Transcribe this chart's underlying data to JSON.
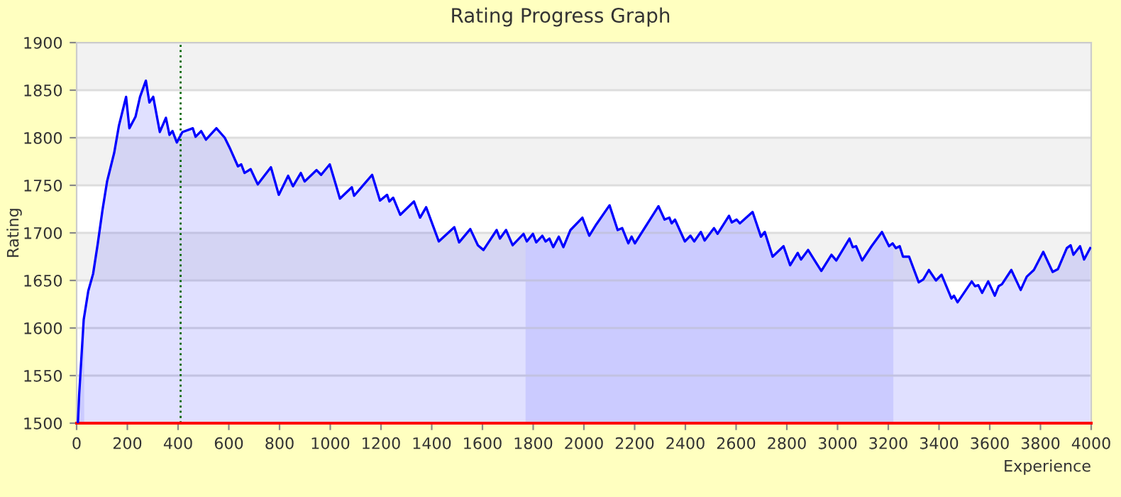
{
  "chart_data": {
    "type": "area",
    "title": "Rating Progress Graph",
    "xlabel": "Experience",
    "ylabel": "Rating",
    "x": [
      5,
      10,
      28,
      46,
      65,
      83,
      102,
      120,
      148,
      167,
      195,
      208,
      232,
      250,
      273,
      287,
      302,
      328,
      352,
      366,
      378,
      395,
      417,
      458,
      469,
      491,
      510,
      551,
      584,
      606,
      636,
      649,
      662,
      686,
      714,
      766,
      797,
      834,
      853,
      884,
      899,
      946,
      964,
      998,
      1025,
      1038,
      1085,
      1094,
      1165,
      1196,
      1224,
      1233,
      1248,
      1276,
      1330,
      1354,
      1378,
      1428,
      1489,
      1508,
      1552,
      1582,
      1604,
      1656,
      1669,
      1693,
      1719,
      1762,
      1775,
      1799,
      1812,
      1836,
      1849,
      1864,
      1879,
      1901,
      1919,
      1947,
      1994,
      2021,
      2049,
      2101,
      2133,
      2151,
      2175,
      2188,
      2201,
      2294,
      2318,
      2337,
      2346,
      2359,
      2398,
      2420,
      2435,
      2461,
      2476,
      2513,
      2527,
      2572,
      2583,
      2602,
      2615,
      2665,
      2698,
      2713,
      2744,
      2787,
      2813,
      2843,
      2856,
      2884,
      2912,
      2936,
      2976,
      2995,
      3047,
      3060,
      3073,
      3097,
      3134,
      3175,
      3203,
      3217,
      3230,
      3245,
      3258,
      3282,
      3320,
      3338,
      3360,
      3388,
      3410,
      3449,
      3459,
      3473,
      3529,
      3542,
      3555,
      3570,
      3594,
      3620,
      3635,
      3648,
      3685,
      3722,
      3746,
      3774,
      3811,
      3848,
      3869,
      3904,
      3919,
      3930,
      3956,
      3972,
      3996
    ],
    "series": [
      {
        "color": "#0000ff",
        "values": [
          1500,
          1530,
          1609,
          1639,
          1657,
          1688,
          1724,
          1754,
          1784,
          1813,
          1843,
          1810,
          1822,
          1843,
          1860,
          1837,
          1843,
          1806,
          1821,
          1803,
          1807,
          1795,
          1806,
          1810,
          1801,
          1807,
          1798,
          1810,
          1800,
          1788,
          1770,
          1772,
          1763,
          1767,
          1751,
          1769,
          1740,
          1760,
          1749,
          1763,
          1754,
          1766,
          1761,
          1772,
          1748,
          1736,
          1748,
          1739,
          1761,
          1734,
          1740,
          1733,
          1737,
          1719,
          1733,
          1716,
          1727,
          1691,
          1706,
          1690,
          1704,
          1687,
          1682,
          1703,
          1694,
          1703,
          1687,
          1699,
          1691,
          1699,
          1690,
          1697,
          1691,
          1694,
          1685,
          1696,
          1685,
          1703,
          1716,
          1697,
          1709,
          1729,
          1703,
          1705,
          1689,
          1696,
          1689,
          1728,
          1714,
          1716,
          1710,
          1714,
          1691,
          1697,
          1691,
          1701,
          1692,
          1705,
          1699,
          1718,
          1711,
          1714,
          1710,
          1722,
          1696,
          1701,
          1675,
          1686,
          1666,
          1679,
          1672,
          1682,
          1670,
          1660,
          1677,
          1671,
          1694,
          1685,
          1686,
          1671,
          1686,
          1701,
          1686,
          1689,
          1684,
          1686,
          1675,
          1675,
          1648,
          1651,
          1661,
          1650,
          1656,
          1631,
          1634,
          1627,
          1649,
          1644,
          1645,
          1637,
          1649,
          1634,
          1644,
          1646,
          1661,
          1640,
          1654,
          1661,
          1680,
          1659,
          1662,
          1684,
          1687,
          1677,
          1686,
          1672,
          1684
        ]
      }
    ],
    "xlim": [
      0,
      4000
    ],
    "ylim": [
      1500,
      1900
    ],
    "xticks": [
      0,
      200,
      400,
      600,
      800,
      1000,
      1200,
      1400,
      1600,
      1800,
      2000,
      2200,
      2400,
      2600,
      2800,
      3000,
      3200,
      3400,
      3600,
      3800,
      4000
    ],
    "yticks": [
      1500,
      1550,
      1600,
      1650,
      1700,
      1750,
      1800,
      1850,
      1900
    ],
    "grid": "y",
    "ref_lines": [
      {
        "axis": "x",
        "value": 410,
        "color": "#006600",
        "line_style": "dotted"
      }
    ],
    "bands": [
      {
        "axis": "y",
        "from": 1850,
        "to": 1900,
        "color": "#f2f2f2"
      },
      {
        "axis": "y",
        "from": 1750,
        "to": 1800,
        "color": "#f2f2f2"
      },
      {
        "axis": "y",
        "from": 1650,
        "to": 1700,
        "color": "#f2f2f2"
      },
      {
        "axis": "x",
        "from": 0,
        "to": 30,
        "color": "#e8e8ff"
      },
      {
        "axis": "x",
        "from": 1770,
        "to": 3220,
        "color": "#e8e8ff"
      }
    ]
  }
}
